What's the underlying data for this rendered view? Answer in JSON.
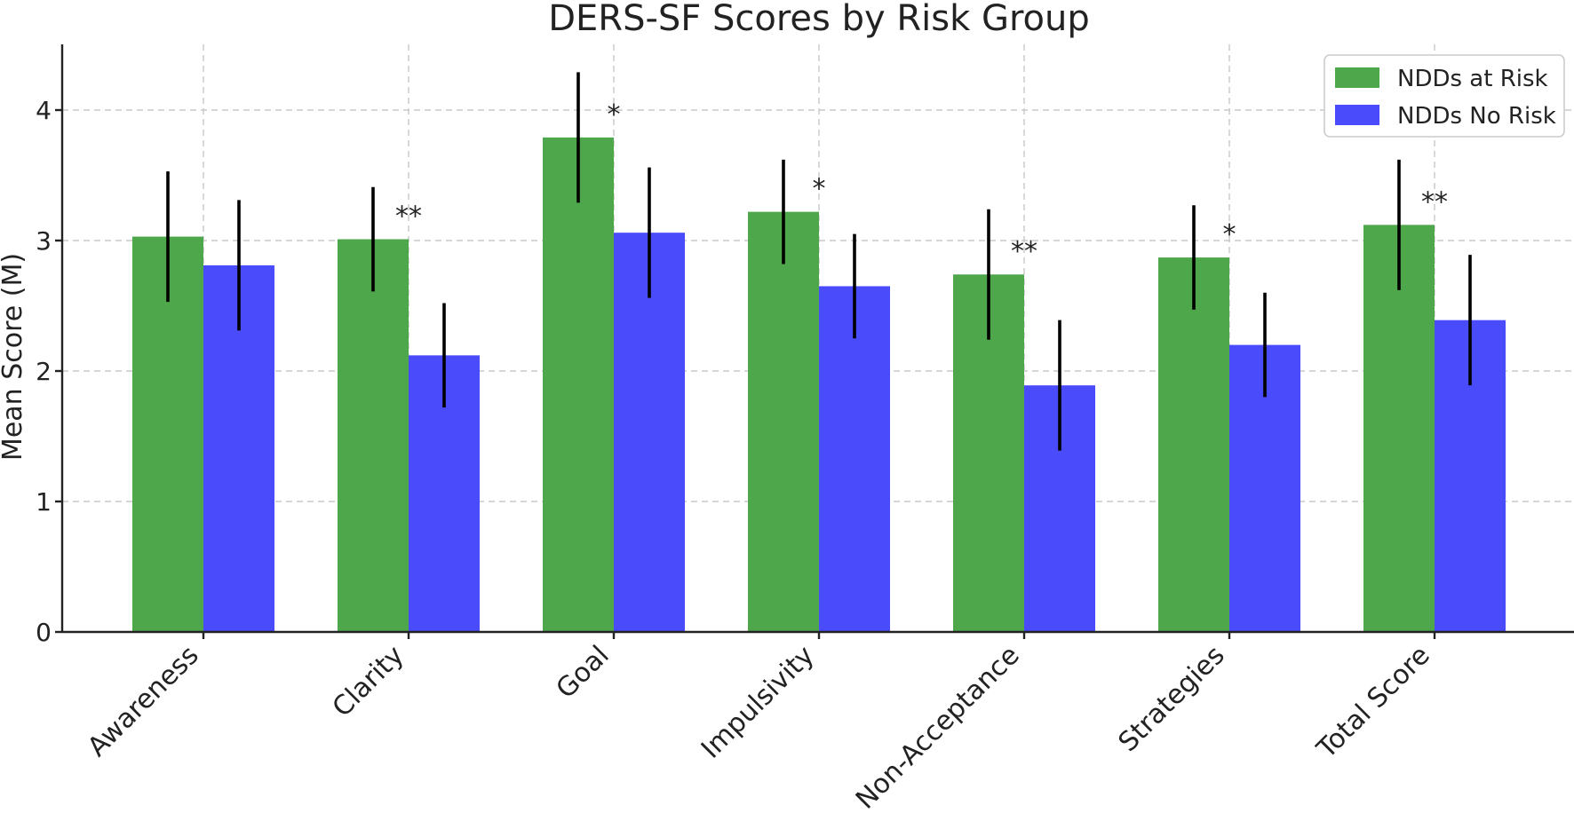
{
  "chart_data": {
    "type": "bar",
    "title": "DERS-SF Scores by Risk Group",
    "xlabel": "",
    "ylabel": "Mean Score (M)",
    "ylim": [
      0,
      4.5
    ],
    "yticks": [
      0,
      1,
      2,
      3,
      4
    ],
    "grid": true,
    "legend_position": "top-right",
    "categories": [
      "Awareness",
      "Clarity",
      "Goal",
      "Impulsivity",
      "Non-Acceptance",
      "Strategies",
      "Total Score"
    ],
    "series": [
      {
        "name": "NDDs at Risk",
        "color": "#4ea74a",
        "values": [
          3.03,
          3.01,
          3.79,
          3.22,
          2.74,
          2.87,
          3.12
        ],
        "error": [
          0.5,
          0.4,
          0.5,
          0.4,
          0.5,
          0.4,
          0.5
        ]
      },
      {
        "name": "NDDs No Risk",
        "color": "#4a4cfc",
        "values": [
          2.81,
          2.12,
          3.06,
          2.65,
          1.89,
          2.2,
          2.39
        ],
        "error": [
          0.5,
          0.4,
          0.5,
          0.4,
          0.5,
          0.4,
          0.5
        ]
      }
    ],
    "significance": [
      "",
      "**",
      "*",
      "*",
      "**",
      "*",
      "**"
    ]
  }
}
